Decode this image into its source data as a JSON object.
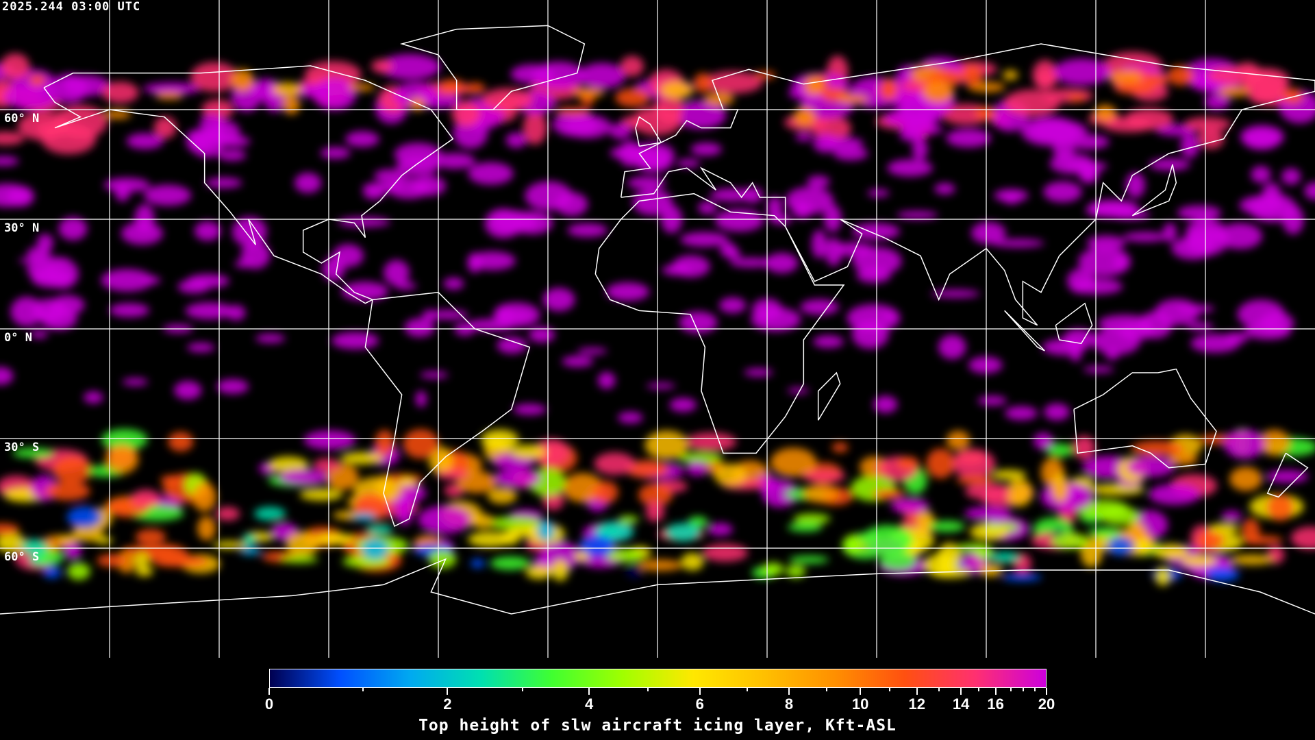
{
  "timestamp": "2025.244 03:00 UTC",
  "map": {
    "projection": "equirectangular",
    "grid_interval_deg": 30,
    "lat_labels": [
      "60° N",
      "30° N",
      "0° N",
      "30° S",
      "60° S"
    ],
    "coastline_color": "#ffffff",
    "grid_color": "#ffffff",
    "background_color": "#000000"
  },
  "colorbar": {
    "title": "Top height of slw aircraft icing layer, Kft-ASL",
    "range": [
      0,
      20
    ],
    "major_ticks": [
      "0",
      "2",
      "4",
      "6",
      "8",
      "10",
      "12",
      "14",
      "16",
      "20"
    ],
    "minor_ticks": [
      1,
      3,
      5,
      7,
      9,
      11,
      13,
      15,
      17,
      18,
      19
    ],
    "colors": [
      "#000050",
      "#0050ff",
      "#00aaf0",
      "#00e0b0",
      "#40ff30",
      "#a0ff00",
      "#ffe800",
      "#ffc000",
      "#ff9000",
      "#ff5010",
      "#ff3070",
      "#cc00dd"
    ]
  }
}
